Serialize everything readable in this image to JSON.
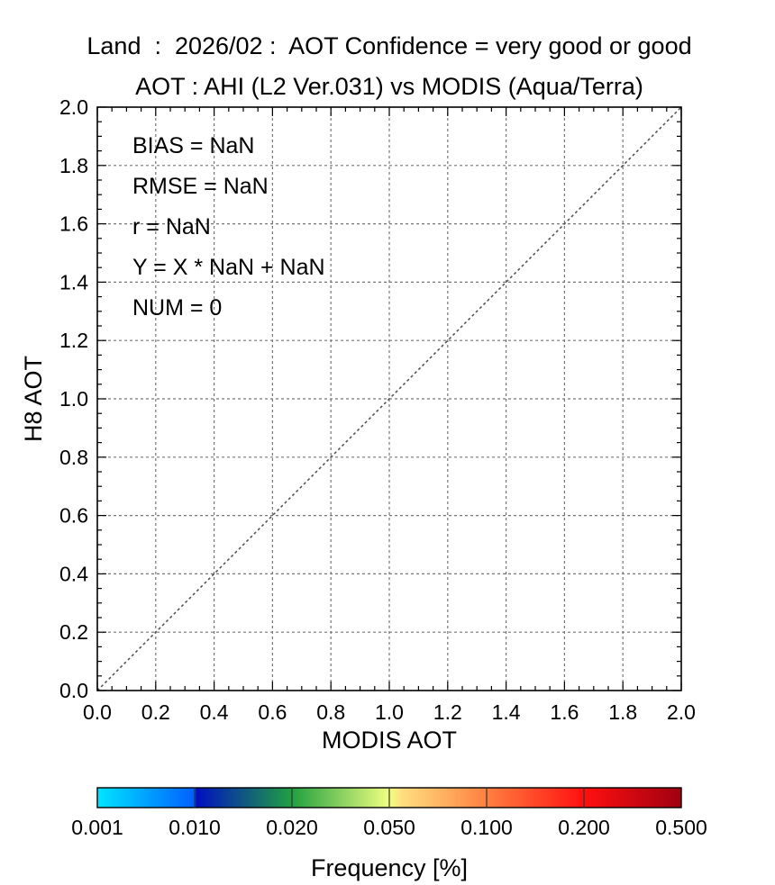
{
  "chart_data": {
    "type": "scatter",
    "title_line1": "Land  :  2026/02 :  AOT Confidence = very good or good",
    "title_line2": "AOT : AHI (L2 Ver.031) vs MODIS (Aqua/Terra)",
    "xlabel": "MODIS AOT",
    "ylabel": "H8 AOT",
    "xlim": [
      0.0,
      2.0
    ],
    "ylim": [
      0.0,
      2.0
    ],
    "x_ticks": [
      "0.0",
      "0.2",
      "0.4",
      "0.6",
      "0.8",
      "1.0",
      "1.2",
      "1.4",
      "1.6",
      "1.8",
      "2.0"
    ],
    "y_ticks": [
      "0.0",
      "0.2",
      "0.4",
      "0.6",
      "0.8",
      "1.0",
      "1.2",
      "1.4",
      "1.6",
      "1.8",
      "2.0"
    ],
    "grid": true,
    "reference_line": "y = x",
    "points": [],
    "stats": [
      "BIAS = NaN",
      "RMSE = NaN",
      "r = NaN",
      "Y = X * NaN + NaN",
      "NUM = 0"
    ],
    "colorbar": {
      "label": "Frequency [%]",
      "tick_labels": [
        "0.001",
        "0.010",
        "0.020",
        "0.050",
        "0.100",
        "0.200",
        "0.500"
      ],
      "colors": [
        "#00e5ff",
        "#0020c0",
        "#20a040",
        "#ffff80",
        "#ff8020",
        "#ff0000",
        "#a00010"
      ]
    }
  }
}
